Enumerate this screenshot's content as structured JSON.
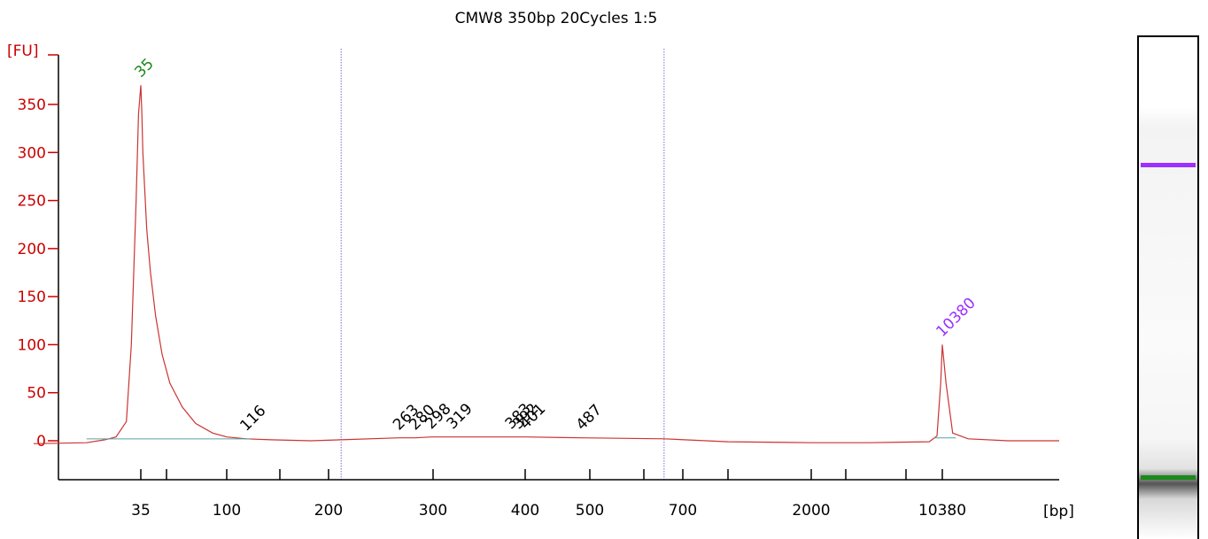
{
  "chart_data": {
    "type": "line",
    "title": "CMW8 350bp 20Cycles 1:5",
    "ylabel": "[FU]",
    "xlabel": "[bp]",
    "ylim": [
      -40,
      400
    ],
    "yticks": [
      0,
      50,
      100,
      150,
      200,
      250,
      300,
      350
    ],
    "xticks": [
      {
        "label": "35",
        "value": 35
      },
      {
        "label": "",
        "value": 50
      },
      {
        "label": "100",
        "value": 100
      },
      {
        "label": "",
        "value": 150
      },
      {
        "label": "200",
        "value": 200
      },
      {
        "label": "300",
        "value": 300
      },
      {
        "label": "400",
        "value": 400
      },
      {
        "label": "500",
        "value": 500
      },
      {
        "label": "",
        "value": 600
      },
      {
        "label": "700",
        "value": 700
      },
      {
        "label": "",
        "value": 1000
      },
      {
        "label": "2000",
        "value": 2000
      },
      {
        "label": "",
        "value": 4000
      },
      {
        "label": "",
        "value": 7000
      },
      {
        "label": "10380",
        "value": 10380
      }
    ],
    "series": [
      {
        "color": "#cc3333",
        "x": [
          18,
          25,
          28,
          30,
          32,
          33,
          34,
          34.5,
          35,
          35.5,
          36,
          37,
          38,
          40,
          43,
          47,
          52,
          60,
          70,
          85,
          100,
          116,
          140,
          180,
          210,
          263,
          280,
          298,
          319,
          383,
          392,
          401,
          487,
          650,
          1000,
          2000,
          5000,
          9000,
          9800,
          10200,
          10380,
          10600,
          11000,
          12000,
          15000,
          20000
        ],
        "y": [
          -3,
          -2,
          1,
          4,
          20,
          100,
          250,
          340,
          370,
          340,
          300,
          260,
          220,
          175,
          130,
          90,
          60,
          35,
          18,
          8,
          4,
          2,
          1,
          0,
          1,
          3,
          3,
          4,
          4,
          4,
          4,
          4,
          3,
          2,
          -1,
          -2,
          -2,
          -1,
          5,
          60,
          100,
          60,
          8,
          2,
          0,
          0
        ]
      }
    ],
    "peaks": [
      {
        "label": "35",
        "x": 35,
        "y": 370,
        "color": "#1a8a1a"
      },
      {
        "label": "116",
        "x": 116,
        "y": 2,
        "color": "#000000"
      },
      {
        "label": "263",
        "x": 263,
        "y": 3,
        "color": "#000000"
      },
      {
        "label": "280",
        "x": 280,
        "y": 3,
        "color": "#000000"
      },
      {
        "label": "298",
        "x": 298,
        "y": 4,
        "color": "#000000"
      },
      {
        "label": "319",
        "x": 319,
        "y": 4,
        "color": "#000000"
      },
      {
        "label": "383",
        "x": 383,
        "y": 4,
        "color": "#000000"
      },
      {
        "label": "392",
        "x": 392,
        "y": 4,
        "color": "#000000"
      },
      {
        "label": "401",
        "x": 401,
        "y": 4,
        "color": "#000000"
      },
      {
        "label": "487",
        "x": 487,
        "y": 3,
        "color": "#000000"
      },
      {
        "label": "10380",
        "x": 10380,
        "y": 100,
        "color": "#9b30ff"
      }
    ],
    "region_markers_bp": [
      210,
      650
    ],
    "grid": false,
    "legend": "none"
  },
  "gel": {
    "upper_marker_color": "#9b30ff",
    "lower_marker_color": "#1a8a1a",
    "upper_marker_level": 0.25,
    "lower_marker_level": 0.87
  }
}
